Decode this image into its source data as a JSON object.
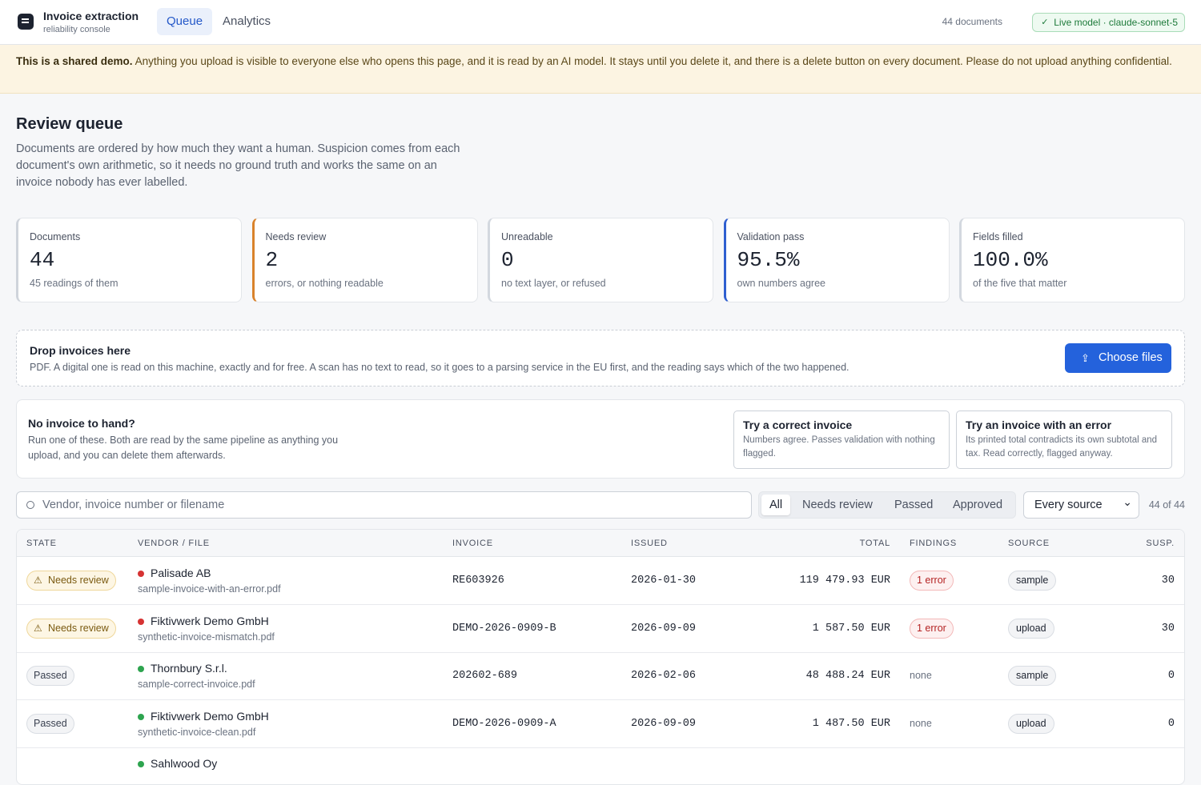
{
  "header": {
    "title": "Invoice extraction",
    "subtitle": "reliability console",
    "tabs": [
      "Queue",
      "Analytics"
    ],
    "doc_count": "44 documents",
    "model": "Live model · claude-sonnet-5"
  },
  "banner": {
    "lead": "This is a shared demo.",
    "text": "Anything you upload is visible to everyone else who opens this page, and it is read by an AI model. It stays until you delete it, and there is a delete button on every document. Please do not upload anything confidential."
  },
  "intro": {
    "title": "Review queue",
    "text": "Documents are ordered by how much they want a human. Suspicion comes from each document's own arithmetic, so it needs no ground truth and works the same on an invoice nobody has ever labelled."
  },
  "stats": [
    {
      "label": "Documents",
      "value": "44",
      "note": "45 readings of them"
    },
    {
      "label": "Needs review",
      "value": "2",
      "note": "errors, or nothing readable"
    },
    {
      "label": "Unreadable",
      "value": "0",
      "note": "no text layer, or refused"
    },
    {
      "label": "Validation pass",
      "value": "95.5%",
      "note": "own numbers agree"
    },
    {
      "label": "Fields filled",
      "value": "100.0%",
      "note": "of the five that matter"
    }
  ],
  "drop": {
    "title": "Drop invoices here",
    "text": "PDF. A digital one is read on this machine, exactly and for free. A scan has no text to read, so it goes to a parsing service in the EU first, and the reading says which of the two happened.",
    "button": "Choose files"
  },
  "samples": {
    "title": "No invoice to hand?",
    "text": "Run one of these. Both are read by the same pipeline as anything you upload, and you can delete them afterwards.",
    "options": [
      {
        "title": "Try a correct invoice",
        "text": "Numbers agree. Passes validation with nothing flagged."
      },
      {
        "title": "Try an invoice with an error",
        "text": "Its printed total contradicts its own subtotal and tax. Read correctly, flagged anyway."
      }
    ]
  },
  "filters": {
    "search": "Vendor, invoice number or filename",
    "segments": [
      "All",
      "Needs review",
      "Passed",
      "Approved"
    ],
    "source": "Every source",
    "count": "44 of 44"
  },
  "table": {
    "columns": [
      "STATE",
      "VENDOR / FILE",
      "INVOICE",
      "ISSUED",
      "TOTAL",
      "FINDINGS",
      "SOURCE",
      "SUSP."
    ],
    "rows": [
      {
        "state": "Needs review",
        "vendor": "Palisade AB",
        "file": "sample-invoice-with-an-error.pdf",
        "invoice": "RE603926",
        "issued": "2026-01-30",
        "total": "119 479.93 EUR",
        "findings": "1 error",
        "source": "sample",
        "susp": "30"
      },
      {
        "state": "Needs review",
        "vendor": "Fiktivwerk Demo GmbH",
        "file": "synthetic-invoice-mismatch.pdf",
        "invoice": "DEMO-2026-0909-B",
        "issued": "2026-09-09",
        "total": "1 587.50 EUR",
        "findings": "1 error",
        "source": "upload",
        "susp": "30"
      },
      {
        "state": "Passed",
        "vendor": "Thornbury S.r.l.",
        "file": "sample-correct-invoice.pdf",
        "invoice": "202602-689",
        "issued": "2026-02-06",
        "total": "48 488.24 EUR",
        "findings": "none",
        "source": "sample",
        "susp": "0"
      },
      {
        "state": "Passed",
        "vendor": "Fiktivwerk Demo GmbH",
        "file": "synthetic-invoice-clean.pdf",
        "invoice": "DEMO-2026-0909-A",
        "issued": "2026-09-09",
        "total": "1 487.50 EUR",
        "findings": "none",
        "source": "upload",
        "susp": "0"
      },
      {
        "vendor": "Sahlwood Oy"
      }
    ]
  }
}
